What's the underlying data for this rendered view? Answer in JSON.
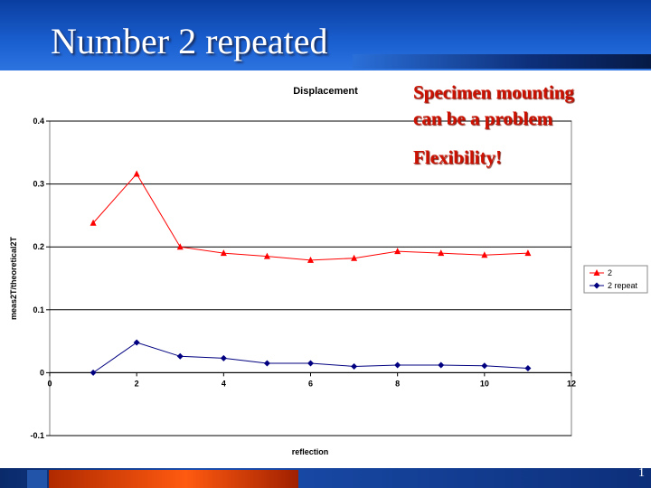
{
  "slide": {
    "title": "Number 2 repeated",
    "notes": [
      "Specimen mounting",
      "can be a problem",
      "Flexibility!"
    ],
    "page_number": "1"
  },
  "colors": {
    "header": "#1a5fd0",
    "note_text": "#cc1100",
    "series_2": "#ff0000",
    "series_2_repeat": "#000080"
  },
  "chart_data": {
    "type": "line",
    "title": "Displacement",
    "xlabel": "reflection",
    "ylabel": "meas2T/theoretical2T",
    "xlim": [
      0,
      12
    ],
    "ylim": [
      -0.1,
      0.4
    ],
    "xticks": [
      0,
      2,
      4,
      6,
      8,
      10,
      12
    ],
    "yticks": [
      -0.1,
      0,
      0.1,
      0.2,
      0.3,
      0.4
    ],
    "grid": "horizontal",
    "legend_position": "right",
    "series": [
      {
        "name": "2",
        "color": "#ff0000",
        "marker": "triangle",
        "x": [
          1,
          2,
          3,
          4,
          5,
          6,
          7,
          8,
          9,
          10,
          11
        ],
        "y": [
          0.238,
          0.316,
          0.2,
          0.19,
          0.185,
          0.179,
          0.182,
          0.193,
          0.19,
          0.187,
          0.19
        ]
      },
      {
        "name": "2 repeat",
        "color": "#000080",
        "marker": "diamond",
        "x": [
          1,
          2,
          3,
          4,
          5,
          6,
          7,
          8,
          9,
          10,
          11
        ],
        "y": [
          0.0,
          0.048,
          0.026,
          0.023,
          0.015,
          0.015,
          0.01,
          0.012,
          0.012,
          0.011,
          0.007
        ]
      }
    ]
  }
}
